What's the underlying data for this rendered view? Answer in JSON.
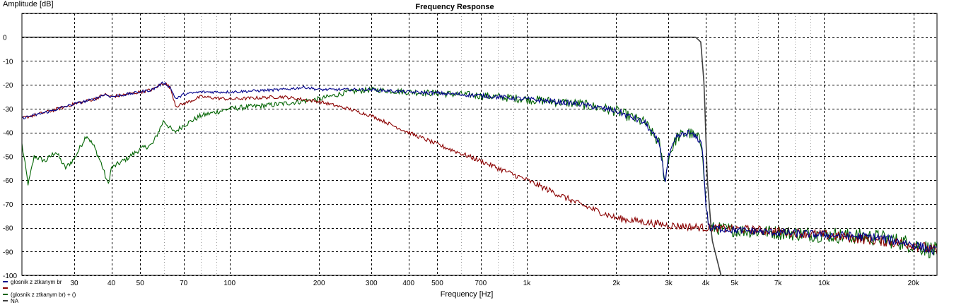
{
  "chart_data": {
    "type": "line",
    "title": "Frequency Response",
    "ylabel": "Amplitude [dB]",
    "xlabel": "Frequency [Hz]",
    "xscale": "log",
    "xlim": [
      20,
      24000
    ],
    "ylim": [
      -100,
      10
    ],
    "grid": true,
    "legend_position": "bottom-left",
    "y_ticks": [
      "0",
      "-10",
      "-20",
      "-30",
      "-40",
      "-50",
      "-60",
      "-70",
      "-80",
      "-90",
      "-100"
    ],
    "x_ticks": [
      {
        "value": 30,
        "label": "30"
      },
      {
        "value": 40,
        "label": "40"
      },
      {
        "value": 50,
        "label": "50"
      },
      {
        "value": 70,
        "label": "70"
      },
      {
        "value": 100,
        "label": "100"
      },
      {
        "value": 200,
        "label": "200"
      },
      {
        "value": 300,
        "label": "300"
      },
      {
        "value": 400,
        "label": "400"
      },
      {
        "value": 500,
        "label": "500"
      },
      {
        "value": 700,
        "label": "700"
      },
      {
        "value": 1000,
        "label": "1k"
      },
      {
        "value": 2000,
        "label": "2k"
      },
      {
        "value": 3000,
        "label": "3k"
      },
      {
        "value": 4000,
        "label": "4k"
      },
      {
        "value": 5000,
        "label": "5k"
      },
      {
        "value": 7000,
        "label": "7k"
      },
      {
        "value": 10000,
        "label": "10k"
      },
      {
        "value": 20000,
        "label": "20k"
      }
    ],
    "series": [
      {
        "name": "glosnik z ztkanym br",
        "color": "#00008b",
        "noise": 1.2,
        "points": [
          [
            20,
            -34
          ],
          [
            25,
            -31
          ],
          [
            30,
            -28
          ],
          [
            35,
            -26
          ],
          [
            38,
            -24
          ],
          [
            40,
            -25
          ],
          [
            45,
            -24
          ],
          [
            50,
            -23
          ],
          [
            55,
            -22
          ],
          [
            60,
            -19
          ],
          [
            63,
            -21
          ],
          [
            66,
            -26
          ],
          [
            70,
            -24
          ],
          [
            80,
            -23
          ],
          [
            100,
            -23
          ],
          [
            150,
            -22
          ],
          [
            180,
            -21
          ],
          [
            200,
            -22
          ],
          [
            300,
            -22
          ],
          [
            400,
            -23
          ],
          [
            500,
            -23.5
          ],
          [
            700,
            -24.5
          ],
          [
            1000,
            -26
          ],
          [
            1500,
            -28
          ],
          [
            2000,
            -31
          ],
          [
            2500,
            -36
          ],
          [
            2800,
            -45
          ],
          [
            2920,
            -61
          ],
          [
            3000,
            -50
          ],
          [
            3200,
            -42
          ],
          [
            3500,
            -40
          ],
          [
            3800,
            -43
          ],
          [
            3900,
            -46
          ],
          [
            4000,
            -70
          ],
          [
            4100,
            -80
          ],
          [
            5000,
            -81
          ],
          [
            7000,
            -82
          ],
          [
            10000,
            -83
          ],
          [
            15000,
            -84
          ],
          [
            20000,
            -87
          ],
          [
            24000,
            -90
          ]
        ]
      },
      {
        "name": "",
        "color": "#8b0000",
        "noise": 1.4,
        "points": [
          [
            20,
            -34
          ],
          [
            25,
            -31
          ],
          [
            30,
            -28
          ],
          [
            35,
            -26
          ],
          [
            38,
            -24
          ],
          [
            40,
            -25
          ],
          [
            45,
            -24
          ],
          [
            50,
            -23
          ],
          [
            55,
            -22
          ],
          [
            60,
            -19
          ],
          [
            63,
            -21
          ],
          [
            66,
            -29
          ],
          [
            70,
            -28
          ],
          [
            80,
            -25
          ],
          [
            100,
            -26
          ],
          [
            150,
            -25
          ],
          [
            200,
            -27
          ],
          [
            250,
            -30
          ],
          [
            300,
            -33
          ],
          [
            400,
            -40
          ],
          [
            500,
            -45
          ],
          [
            700,
            -52
          ],
          [
            1000,
            -60
          ],
          [
            1500,
            -70
          ],
          [
            2000,
            -76
          ],
          [
            3000,
            -79
          ],
          [
            4000,
            -80
          ],
          [
            6000,
            -81
          ],
          [
            10000,
            -83
          ],
          [
            20000,
            -87
          ],
          [
            24000,
            -90
          ]
        ]
      },
      {
        "name": "(glosnik z ztkanym br) + ()",
        "color": "#006400",
        "noise": 2.2,
        "points": [
          [
            20,
            -45
          ],
          [
            21,
            -62
          ],
          [
            22,
            -50
          ],
          [
            24,
            -52
          ],
          [
            26,
            -48
          ],
          [
            28,
            -55
          ],
          [
            30,
            -51
          ],
          [
            33,
            -41
          ],
          [
            35,
            -46
          ],
          [
            37,
            -53
          ],
          [
            39,
            -62
          ],
          [
            40,
            -55
          ],
          [
            45,
            -51
          ],
          [
            50,
            -47
          ],
          [
            55,
            -45
          ],
          [
            60,
            -35
          ],
          [
            65,
            -40
          ],
          [
            70,
            -37
          ],
          [
            80,
            -33
          ],
          [
            100,
            -30
          ],
          [
            150,
            -28
          ],
          [
            200,
            -26
          ],
          [
            250,
            -23
          ],
          [
            300,
            -22
          ],
          [
            400,
            -23
          ],
          [
            500,
            -23.5
          ],
          [
            700,
            -24.5
          ],
          [
            1000,
            -26
          ],
          [
            1500,
            -28
          ],
          [
            2000,
            -31
          ],
          [
            2500,
            -36
          ],
          [
            2800,
            -45
          ],
          [
            2920,
            -61
          ],
          [
            3000,
            -50
          ],
          [
            3200,
            -42
          ],
          [
            3500,
            -40
          ],
          [
            3800,
            -43
          ],
          [
            3900,
            -46
          ],
          [
            4000,
            -70
          ],
          [
            4100,
            -80
          ],
          [
            5000,
            -81
          ],
          [
            7000,
            -82
          ],
          [
            10000,
            -83
          ],
          [
            15000,
            -84
          ],
          [
            20000,
            -87
          ],
          [
            24000,
            -90
          ]
        ]
      },
      {
        "name": "NA",
        "color": "#404040",
        "noise": 0,
        "points": [
          [
            20,
            0
          ],
          [
            3700,
            0
          ],
          [
            3850,
            -2
          ],
          [
            3950,
            -20
          ],
          [
            4050,
            -60
          ],
          [
            4200,
            -85
          ],
          [
            4500,
            -100
          ]
        ]
      }
    ]
  }
}
